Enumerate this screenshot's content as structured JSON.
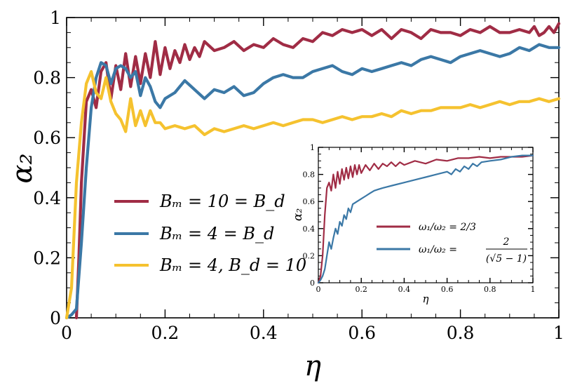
{
  "chart_data": [
    {
      "type": "line",
      "title": "",
      "xlabel": "η",
      "ylabel": "α₂",
      "xlim": [
        0,
        1
      ],
      "ylim": [
        0,
        1
      ],
      "xticks": [
        "0",
        "0.2",
        "0.4",
        "0.6",
        "0.8",
        "1"
      ],
      "yticks": [
        "0",
        "0.2",
        "0.4",
        "0.6",
        "0.8",
        "1"
      ],
      "legend_position": "center-left",
      "series": [
        {
          "name": "B_m = 10 = B_d",
          "label": "Bₘ = 10 = B_d",
          "color": "#a02c45",
          "x": [
            0.02,
            0.025,
            0.03,
            0.04,
            0.05,
            0.06,
            0.07,
            0.08,
            0.09,
            0.1,
            0.11,
            0.12,
            0.13,
            0.14,
            0.15,
            0.16,
            0.17,
            0.18,
            0.19,
            0.2,
            0.21,
            0.22,
            0.23,
            0.24,
            0.25,
            0.26,
            0.27,
            0.28,
            0.3,
            0.32,
            0.34,
            0.36,
            0.38,
            0.4,
            0.42,
            0.44,
            0.46,
            0.48,
            0.5,
            0.52,
            0.54,
            0.56,
            0.58,
            0.6,
            0.62,
            0.64,
            0.66,
            0.68,
            0.7,
            0.72,
            0.74,
            0.76,
            0.78,
            0.8,
            0.82,
            0.84,
            0.86,
            0.88,
            0.9,
            0.92,
            0.94,
            0.95,
            0.96,
            0.97,
            0.98,
            0.99,
            1.0
          ],
          "y": [
            0.0,
            0.2,
            0.45,
            0.72,
            0.76,
            0.7,
            0.82,
            0.85,
            0.73,
            0.84,
            0.76,
            0.88,
            0.77,
            0.87,
            0.78,
            0.88,
            0.8,
            0.92,
            0.81,
            0.9,
            0.83,
            0.89,
            0.85,
            0.91,
            0.86,
            0.9,
            0.87,
            0.92,
            0.89,
            0.9,
            0.92,
            0.89,
            0.91,
            0.9,
            0.93,
            0.91,
            0.9,
            0.93,
            0.92,
            0.95,
            0.94,
            0.96,
            0.95,
            0.96,
            0.94,
            0.96,
            0.93,
            0.96,
            0.95,
            0.93,
            0.96,
            0.95,
            0.95,
            0.94,
            0.96,
            0.95,
            0.97,
            0.95,
            0.95,
            0.96,
            0.95,
            0.97,
            0.94,
            0.95,
            0.97,
            0.95,
            0.98
          ]
        },
        {
          "name": "B_m = 4 = B_d",
          "label": "Bₘ = 4 = B_d",
          "color": "#3b78a6",
          "x": [
            0.0,
            0.01,
            0.02,
            0.03,
            0.04,
            0.05,
            0.06,
            0.07,
            0.08,
            0.09,
            0.1,
            0.11,
            0.12,
            0.13,
            0.14,
            0.15,
            0.16,
            0.17,
            0.18,
            0.19,
            0.2,
            0.22,
            0.24,
            0.26,
            0.28,
            0.3,
            0.32,
            0.34,
            0.36,
            0.38,
            0.4,
            0.42,
            0.44,
            0.46,
            0.48,
            0.5,
            0.52,
            0.54,
            0.56,
            0.58,
            0.6,
            0.62,
            0.64,
            0.66,
            0.68,
            0.7,
            0.72,
            0.74,
            0.76,
            0.78,
            0.8,
            0.82,
            0.84,
            0.86,
            0.88,
            0.9,
            0.92,
            0.94,
            0.96,
            0.98,
            1.0
          ],
          "y": [
            0.0,
            0.01,
            0.03,
            0.25,
            0.5,
            0.7,
            0.8,
            0.85,
            0.84,
            0.78,
            0.83,
            0.84,
            0.83,
            0.8,
            0.82,
            0.74,
            0.8,
            0.77,
            0.72,
            0.7,
            0.73,
            0.75,
            0.79,
            0.76,
            0.73,
            0.76,
            0.75,
            0.77,
            0.74,
            0.75,
            0.78,
            0.8,
            0.81,
            0.8,
            0.8,
            0.82,
            0.83,
            0.84,
            0.82,
            0.81,
            0.83,
            0.82,
            0.83,
            0.84,
            0.85,
            0.84,
            0.86,
            0.87,
            0.86,
            0.85,
            0.87,
            0.88,
            0.89,
            0.88,
            0.87,
            0.88,
            0.9,
            0.89,
            0.91,
            0.9,
            0.9
          ]
        },
        {
          "name": "B_m = 4, B_d = 10",
          "label": "Bₘ = 4,  B_d = 10",
          "color": "#f5c22f",
          "x": [
            0.0,
            0.01,
            0.02,
            0.03,
            0.04,
            0.05,
            0.06,
            0.07,
            0.08,
            0.09,
            0.1,
            0.11,
            0.12,
            0.13,
            0.14,
            0.15,
            0.16,
            0.17,
            0.18,
            0.19,
            0.2,
            0.22,
            0.24,
            0.26,
            0.28,
            0.3,
            0.32,
            0.34,
            0.36,
            0.38,
            0.4,
            0.42,
            0.44,
            0.46,
            0.48,
            0.5,
            0.52,
            0.54,
            0.56,
            0.58,
            0.6,
            0.62,
            0.64,
            0.66,
            0.68,
            0.7,
            0.72,
            0.74,
            0.76,
            0.78,
            0.8,
            0.82,
            0.84,
            0.86,
            0.88,
            0.9,
            0.92,
            0.94,
            0.96,
            0.98,
            1.0
          ],
          "y": [
            0.0,
            0.1,
            0.45,
            0.65,
            0.78,
            0.82,
            0.75,
            0.73,
            0.8,
            0.72,
            0.68,
            0.66,
            0.62,
            0.73,
            0.64,
            0.69,
            0.64,
            0.69,
            0.65,
            0.65,
            0.63,
            0.64,
            0.63,
            0.64,
            0.61,
            0.63,
            0.62,
            0.63,
            0.64,
            0.63,
            0.64,
            0.65,
            0.64,
            0.65,
            0.66,
            0.66,
            0.65,
            0.66,
            0.67,
            0.66,
            0.67,
            0.67,
            0.68,
            0.67,
            0.69,
            0.68,
            0.69,
            0.69,
            0.7,
            0.7,
            0.7,
            0.71,
            0.7,
            0.71,
            0.72,
            0.71,
            0.72,
            0.72,
            0.73,
            0.72,
            0.73
          ]
        }
      ]
    },
    {
      "type": "line",
      "title": "",
      "xlabel": "η",
      "ylabel": "α₂",
      "xlim": [
        0,
        1
      ],
      "ylim": [
        0,
        1
      ],
      "xticks": [
        "0",
        "0.2",
        "0.4",
        "0.6",
        "0.8",
        "1"
      ],
      "yticks": [
        "0",
        "0.2",
        "0.4",
        "0.6",
        "0.8",
        "1"
      ],
      "legend_position": "lower-right",
      "series": [
        {
          "name": "ω1/ω2 = 2/3",
          "label": "ω₁/ω₂ = 2/3",
          "color": "#a02c45",
          "x": [
            0.0,
            0.01,
            0.02,
            0.03,
            0.04,
            0.05,
            0.06,
            0.07,
            0.08,
            0.09,
            0.1,
            0.11,
            0.12,
            0.13,
            0.14,
            0.15,
            0.16,
            0.17,
            0.18,
            0.19,
            0.2,
            0.22,
            0.24,
            0.26,
            0.28,
            0.3,
            0.32,
            0.34,
            0.36,
            0.38,
            0.4,
            0.45,
            0.5,
            0.55,
            0.6,
            0.65,
            0.7,
            0.75,
            0.8,
            0.85,
            0.9,
            0.95,
            1.0
          ],
          "y": [
            0.0,
            0.05,
            0.2,
            0.5,
            0.7,
            0.74,
            0.68,
            0.8,
            0.7,
            0.82,
            0.73,
            0.84,
            0.76,
            0.85,
            0.77,
            0.86,
            0.78,
            0.87,
            0.8,
            0.87,
            0.81,
            0.87,
            0.83,
            0.88,
            0.84,
            0.88,
            0.86,
            0.89,
            0.86,
            0.89,
            0.87,
            0.9,
            0.88,
            0.91,
            0.9,
            0.92,
            0.92,
            0.93,
            0.92,
            0.93,
            0.93,
            0.93,
            0.94
          ]
        },
        {
          "name": "ω1/ω2 = 2/(√5 − 1)",
          "label_prefix": "ω₁/ω₂ =",
          "label_num": "2",
          "label_den": "(√5 − 1)",
          "color": "#3b78a6",
          "x": [
            0.0,
            0.01,
            0.02,
            0.03,
            0.04,
            0.05,
            0.06,
            0.07,
            0.08,
            0.09,
            0.1,
            0.11,
            0.12,
            0.13,
            0.14,
            0.15,
            0.16,
            0.18,
            0.2,
            0.22,
            0.24,
            0.26,
            0.28,
            0.3,
            0.35,
            0.4,
            0.45,
            0.5,
            0.55,
            0.6,
            0.62,
            0.64,
            0.66,
            0.68,
            0.7,
            0.72,
            0.74,
            0.76,
            0.8,
            0.85,
            0.9,
            0.95,
            1.0
          ],
          "y": [
            0.0,
            0.02,
            0.05,
            0.1,
            0.2,
            0.3,
            0.25,
            0.33,
            0.4,
            0.36,
            0.45,
            0.42,
            0.5,
            0.47,
            0.55,
            0.52,
            0.58,
            0.6,
            0.62,
            0.64,
            0.66,
            0.68,
            0.69,
            0.7,
            0.72,
            0.74,
            0.76,
            0.78,
            0.8,
            0.82,
            0.8,
            0.84,
            0.82,
            0.86,
            0.84,
            0.88,
            0.86,
            0.89,
            0.9,
            0.91,
            0.93,
            0.94,
            0.94
          ]
        }
      ]
    }
  ]
}
